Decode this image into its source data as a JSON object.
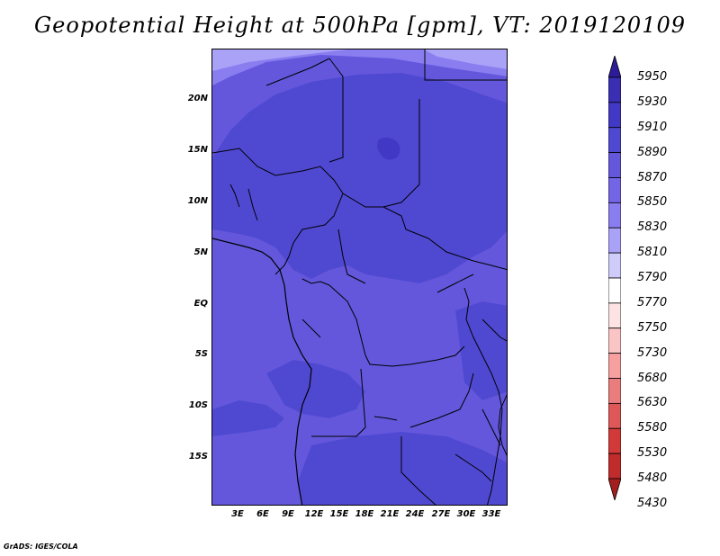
{
  "title": "Geopotential Height at 500hPa [gpm], VT: 2019120109",
  "map": {
    "y_ticks": [
      "20N",
      "15N",
      "10N",
      "5N",
      "EQ",
      "5S",
      "10S",
      "15S"
    ],
    "x_ticks": [
      "3E",
      "6E",
      "9E",
      "12E",
      "15E",
      "18E",
      "21E",
      "24E",
      "27E",
      "30E",
      "33E"
    ]
  },
  "colorbar": {
    "labels": [
      "5950",
      "5930",
      "5910",
      "5890",
      "5870",
      "5850",
      "5830",
      "5810",
      "5790",
      "5770",
      "5750",
      "5730",
      "5680",
      "5630",
      "5580",
      "5530",
      "5480",
      "5430"
    ],
    "colors": [
      "#2d1b99",
      "#3a2fb3",
      "#4238c6",
      "#4f49d2",
      "#6457dc",
      "#7464e6",
      "#8a7df0",
      "#aaa2f7",
      "#cfcbfb",
      "#ffffff",
      "#fde3e3",
      "#fcc5c5",
      "#f6a0a0",
      "#e97c7c",
      "#de5858",
      "#d23a3a",
      "#c02b2b",
      "#a51e1e"
    ]
  },
  "footer": "GrADS: IGES/COLA"
}
